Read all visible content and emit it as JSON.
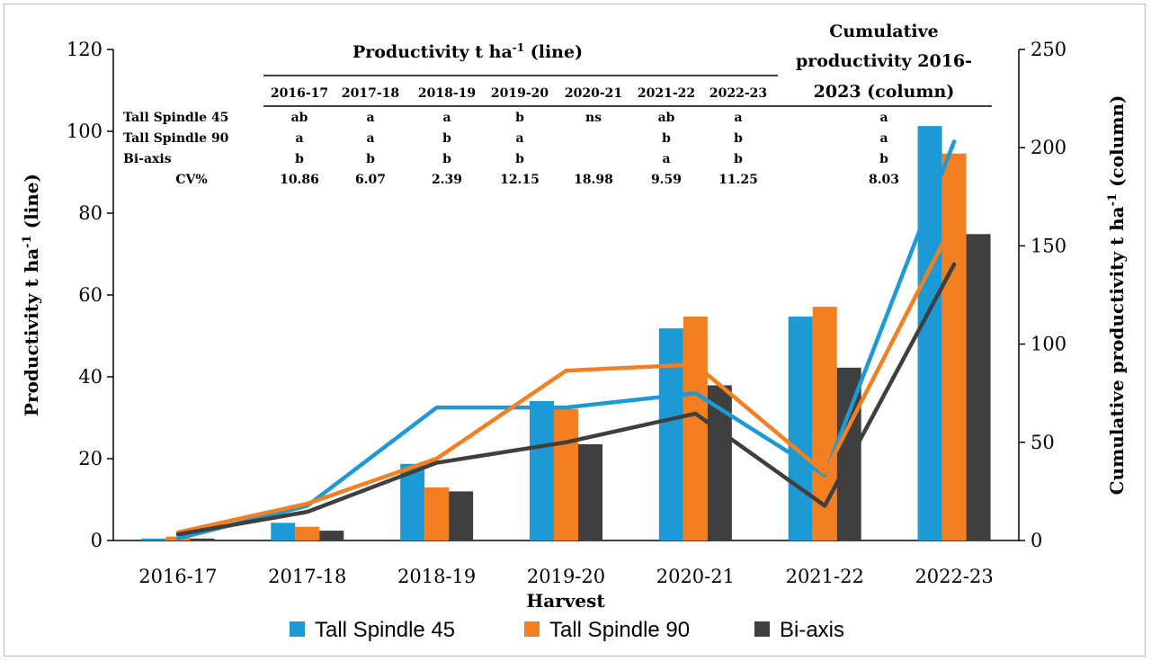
{
  "chart_data": {
    "type": "bar+line",
    "categories": [
      "2016-17",
      "2017-18",
      "2018-19",
      "2019-20",
      "2020-21",
      "2021-22",
      "2022-23"
    ],
    "xlabel": "Harvest",
    "left_axis": {
      "label": "Productivity t ha",
      "sup": "-1",
      "label_end": " (line)",
      "range": [
        0,
        120
      ],
      "ticks": [
        "0",
        "20",
        "40",
        "60",
        "80",
        "100",
        "120"
      ]
    },
    "right_axis": {
      "label": "Cumulative productivity t ha",
      "sup": "-1",
      "label_end": " (column)",
      "range": [
        0,
        250
      ],
      "ticks": [
        "0",
        "50",
        "100",
        "150",
        "200",
        "250"
      ]
    },
    "colors": {
      "Tall Spindle 45": "#1b9ad6",
      "Tall Spindle 90": "#f47f20",
      "Bi-axis": "#3f3f3f"
    },
    "columns_cumulative": [
      {
        "name": "Tall Spindle 45",
        "values": [
          1,
          9,
          39,
          71,
          108,
          114,
          211
        ]
      },
      {
        "name": "Tall Spindle 90",
        "values": [
          2,
          7,
          27,
          67,
          114,
          119,
          197
        ]
      },
      {
        "name": "Bi-axis",
        "values": [
          1,
          5,
          25,
          49,
          79,
          88,
          156
        ]
      }
    ],
    "lines_productivity": [
      {
        "name": "Tall Spindle 45",
        "values": [
          0.5,
          8.5,
          32.5,
          32.5,
          36,
          16,
          97.5
        ]
      },
      {
        "name": "Tall Spindle 90",
        "values": [
          2,
          9,
          20,
          41.5,
          43,
          16.5,
          78
        ]
      },
      {
        "name": "Bi-axis",
        "values": [
          1.5,
          7,
          19,
          24,
          31,
          8.5,
          67.5
        ]
      }
    ]
  },
  "stats_table": {
    "header_title": "Productivity t ha",
    "header_sup": "-1",
    "header_end": " (line)",
    "cumulative_title_lines": [
      "Cumulative",
      "productivity 2016-",
      "2023 (column)"
    ],
    "columns": [
      "2016-17",
      "2017-18",
      "2018-19",
      "2019-20",
      "2020-21",
      "2021-22",
      "2022-23"
    ],
    "rows": [
      {
        "label": "Tall Spindle 45",
        "cells": [
          "ab",
          "a",
          "a",
          "b",
          "ns",
          "ab",
          "a"
        ],
        "cumulative": "a"
      },
      {
        "label": "Tall Spindle 90",
        "cells": [
          "a",
          "a",
          "b",
          "a",
          "",
          "b",
          "b"
        ],
        "cumulative": "a"
      },
      {
        "label": "Bi-axis",
        "cells": [
          "b",
          "b",
          "b",
          "b",
          "",
          "a",
          "b"
        ],
        "cumulative": "b"
      },
      {
        "label": "CV%",
        "cells": [
          "10.86",
          "6.07",
          "2.39",
          "12.15",
          "18.98",
          "9.59",
          "11.25"
        ],
        "cumulative": "8.03"
      }
    ]
  },
  "legend": [
    {
      "name": "Tall Spindle 45",
      "label": "Tall Spindle 45"
    },
    {
      "name": "Tall Spindle 90",
      "label": "Tall Spindle 90"
    },
    {
      "name": "Bi-axis",
      "label": "Bi-axis"
    }
  ]
}
